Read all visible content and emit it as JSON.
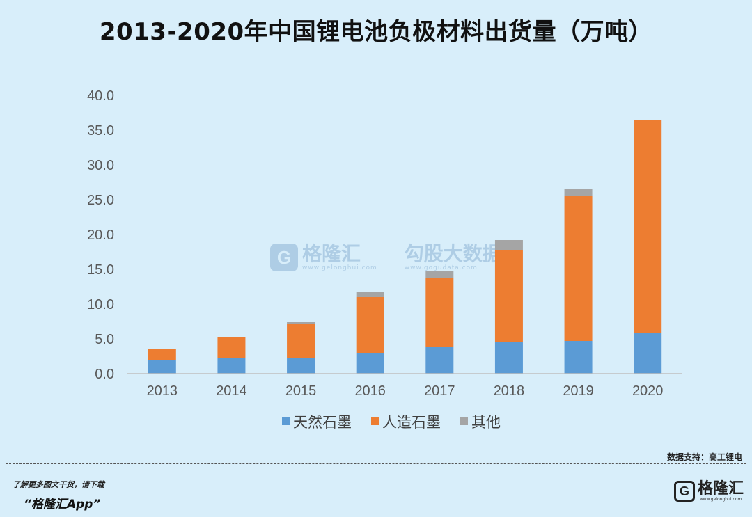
{
  "title": "2013-2020年中国锂电池负极材料出货量（万吨）",
  "chart_data": {
    "type": "bar",
    "stacked": true,
    "categories": [
      "2013",
      "2014",
      "2015",
      "2016",
      "2017",
      "2018",
      "2019",
      "2020"
    ],
    "series": [
      {
        "name": "天然石墨",
        "color": "#5b9bd5",
        "values": [
          2.0,
          2.2,
          2.3,
          3.0,
          3.8,
          4.6,
          4.7,
          5.9
        ]
      },
      {
        "name": "人造石墨",
        "color": "#ed7d31",
        "values": [
          1.5,
          3.0,
          4.8,
          8.0,
          10.0,
          13.2,
          20.8,
          30.6
        ]
      },
      {
        "name": "其他",
        "color": "#a5a5a5",
        "values": [
          0.0,
          0.1,
          0.3,
          0.8,
          0.9,
          1.4,
          1.0,
          0.0
        ]
      }
    ],
    "ylim": [
      0,
      40
    ],
    "yticks": [
      "0.0",
      "5.0",
      "10.0",
      "15.0",
      "20.0",
      "25.0",
      "30.0",
      "35.0",
      "40.0"
    ],
    "legend_position": "bottom",
    "grid": false
  },
  "footer": {
    "source": "数据支持：高工锂电",
    "promo_line": "了解更多图文干货，请下载",
    "promo_app": "“格隆汇App”",
    "logo_text": "格隆汇",
    "logo_sub": "www.gelonghui.com"
  },
  "watermark": {
    "brand1": "格隆汇",
    "url1": "www.gelonghui.com",
    "brand2": "勾股大数据",
    "url2": "www.gogudata.com"
  },
  "icons": {
    "logo": "gelonghui-logo-icon",
    "watermark": "gelonghui-watermark-icon"
  }
}
